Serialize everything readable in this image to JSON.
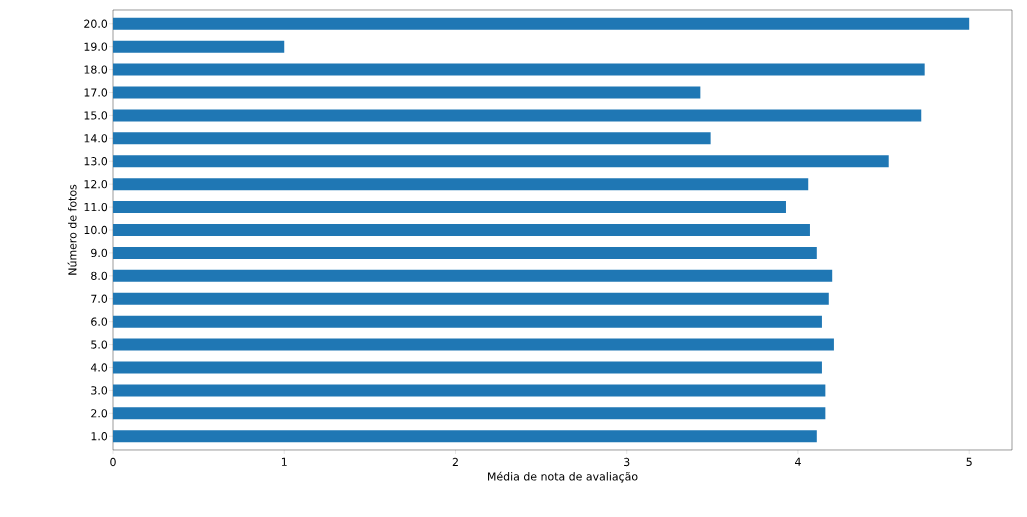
{
  "chart_data": {
    "type": "bar",
    "orientation": "horizontal",
    "xlabel": "Média de nota de avaliação",
    "ylabel": "Número de fotos",
    "categories": [
      "20.0",
      "19.0",
      "18.0",
      "17.0",
      "15.0",
      "14.0",
      "13.0",
      "12.0",
      "11.0",
      "10.0",
      "9.0",
      "8.0",
      "7.0",
      "6.0",
      "5.0",
      "4.0",
      "3.0",
      "2.0",
      "1.0"
    ],
    "values": [
      5.0,
      1.0,
      4.74,
      3.43,
      4.72,
      3.49,
      4.53,
      4.06,
      3.93,
      4.07,
      4.11,
      4.2,
      4.18,
      4.14,
      4.21,
      4.14,
      4.16,
      4.16,
      4.11
    ],
    "color": "#1f77b4",
    "xlim": [
      0,
      5.25
    ],
    "xticks": [
      0,
      1,
      2,
      3,
      4,
      5
    ],
    "grid": false
  }
}
